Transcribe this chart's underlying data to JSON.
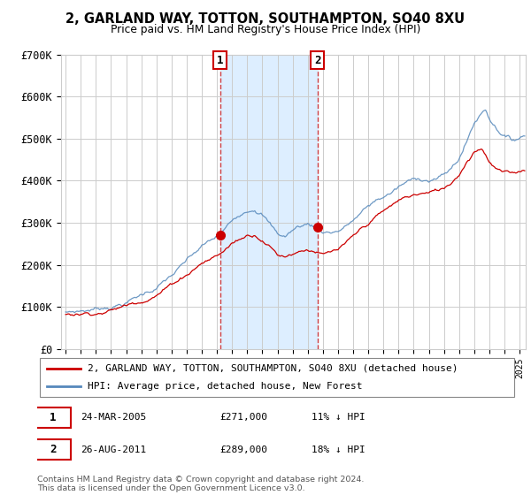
{
  "title1": "2, GARLAND WAY, TOTTON, SOUTHAMPTON, SO40 8XU",
  "title2": "Price paid vs. HM Land Registry's House Price Index (HPI)",
  "legend1": "2, GARLAND WAY, TOTTON, SOUTHAMPTON, SO40 8XU (detached house)",
  "legend2": "HPI: Average price, detached house, New Forest",
  "annotation1_label": "1",
  "annotation1_date": "24-MAR-2005",
  "annotation1_price": "£271,000",
  "annotation1_hpi": "11% ↓ HPI",
  "annotation2_label": "2",
  "annotation2_date": "26-AUG-2011",
  "annotation2_price": "£289,000",
  "annotation2_hpi": "18% ↓ HPI",
  "footer": "Contains HM Land Registry data © Crown copyright and database right 2024.\nThis data is licensed under the Open Government Licence v3.0.",
  "line1_color": "#cc0000",
  "line2_color": "#5588bb",
  "shade_color": "#ddeeff",
  "vline_color": "#cc2222",
  "grid_color": "#cccccc",
  "bg_color": "#ffffff",
  "marker1_x": 2005.21,
  "marker2_x": 2011.64,
  "marker1_y": 271000,
  "marker2_y": 289000,
  "ylim": [
    0,
    700000
  ],
  "xlim_start": 1994.7,
  "xlim_end": 2025.4,
  "yticks": [
    0,
    100000,
    200000,
    300000,
    400000,
    500000,
    600000,
    700000
  ],
  "ytick_labels": [
    "£0",
    "£100K",
    "£200K",
    "£300K",
    "£400K",
    "£500K",
    "£600K",
    "£700K"
  ]
}
